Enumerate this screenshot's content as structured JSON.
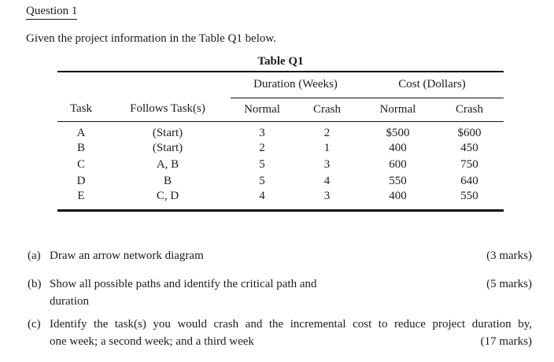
{
  "document": {
    "heading": "Question 1",
    "intro": "Given the project information in the Table Q1 below."
  },
  "table": {
    "caption": "Table Q1",
    "group_headers": {
      "duration": "Duration (Weeks)",
      "cost": "Cost (Dollars)"
    },
    "columns": {
      "task": "Task",
      "follows": "Follows Task(s)",
      "duration_normal": "Normal",
      "duration_crash": "Crash",
      "cost_normal": "Normal",
      "cost_crash": "Crash"
    },
    "rows": [
      {
        "task": "A",
        "follows": "(Start)",
        "duration_normal": "3",
        "duration_crash": "2",
        "cost_normal": "$500",
        "cost_crash": "$600"
      },
      {
        "task": "B",
        "follows": "(Start)",
        "duration_normal": "2",
        "duration_crash": "1",
        "cost_normal": "400",
        "cost_crash": "450"
      },
      {
        "task": "C",
        "follows": "A, B",
        "duration_normal": "5",
        "duration_crash": "3",
        "cost_normal": "600",
        "cost_crash": "750"
      },
      {
        "task": "D",
        "follows": "B",
        "duration_normal": "5",
        "duration_crash": "4",
        "cost_normal": "550",
        "cost_crash": "640"
      },
      {
        "task": "E",
        "follows": "C, D",
        "duration_normal": "4",
        "duration_crash": "3",
        "cost_normal": "400",
        "cost_crash": "550"
      }
    ]
  },
  "questions": [
    {
      "label": "(a)",
      "lines": [
        "Draw an arrow network diagram"
      ],
      "marks": "(3 marks)"
    },
    {
      "label": "(b)",
      "lines": [
        "Show all possible paths and identify the critical path and",
        "duration"
      ],
      "marks": "(5 marks)"
    },
    {
      "label": "(c)",
      "lines": [
        "Identify the task(s) you would crash and the incremental cost to reduce project duration by,",
        "one week; a second week; and a third week"
      ],
      "marks": "(17 marks)"
    }
  ],
  "ink_color": "#1c1c1c"
}
